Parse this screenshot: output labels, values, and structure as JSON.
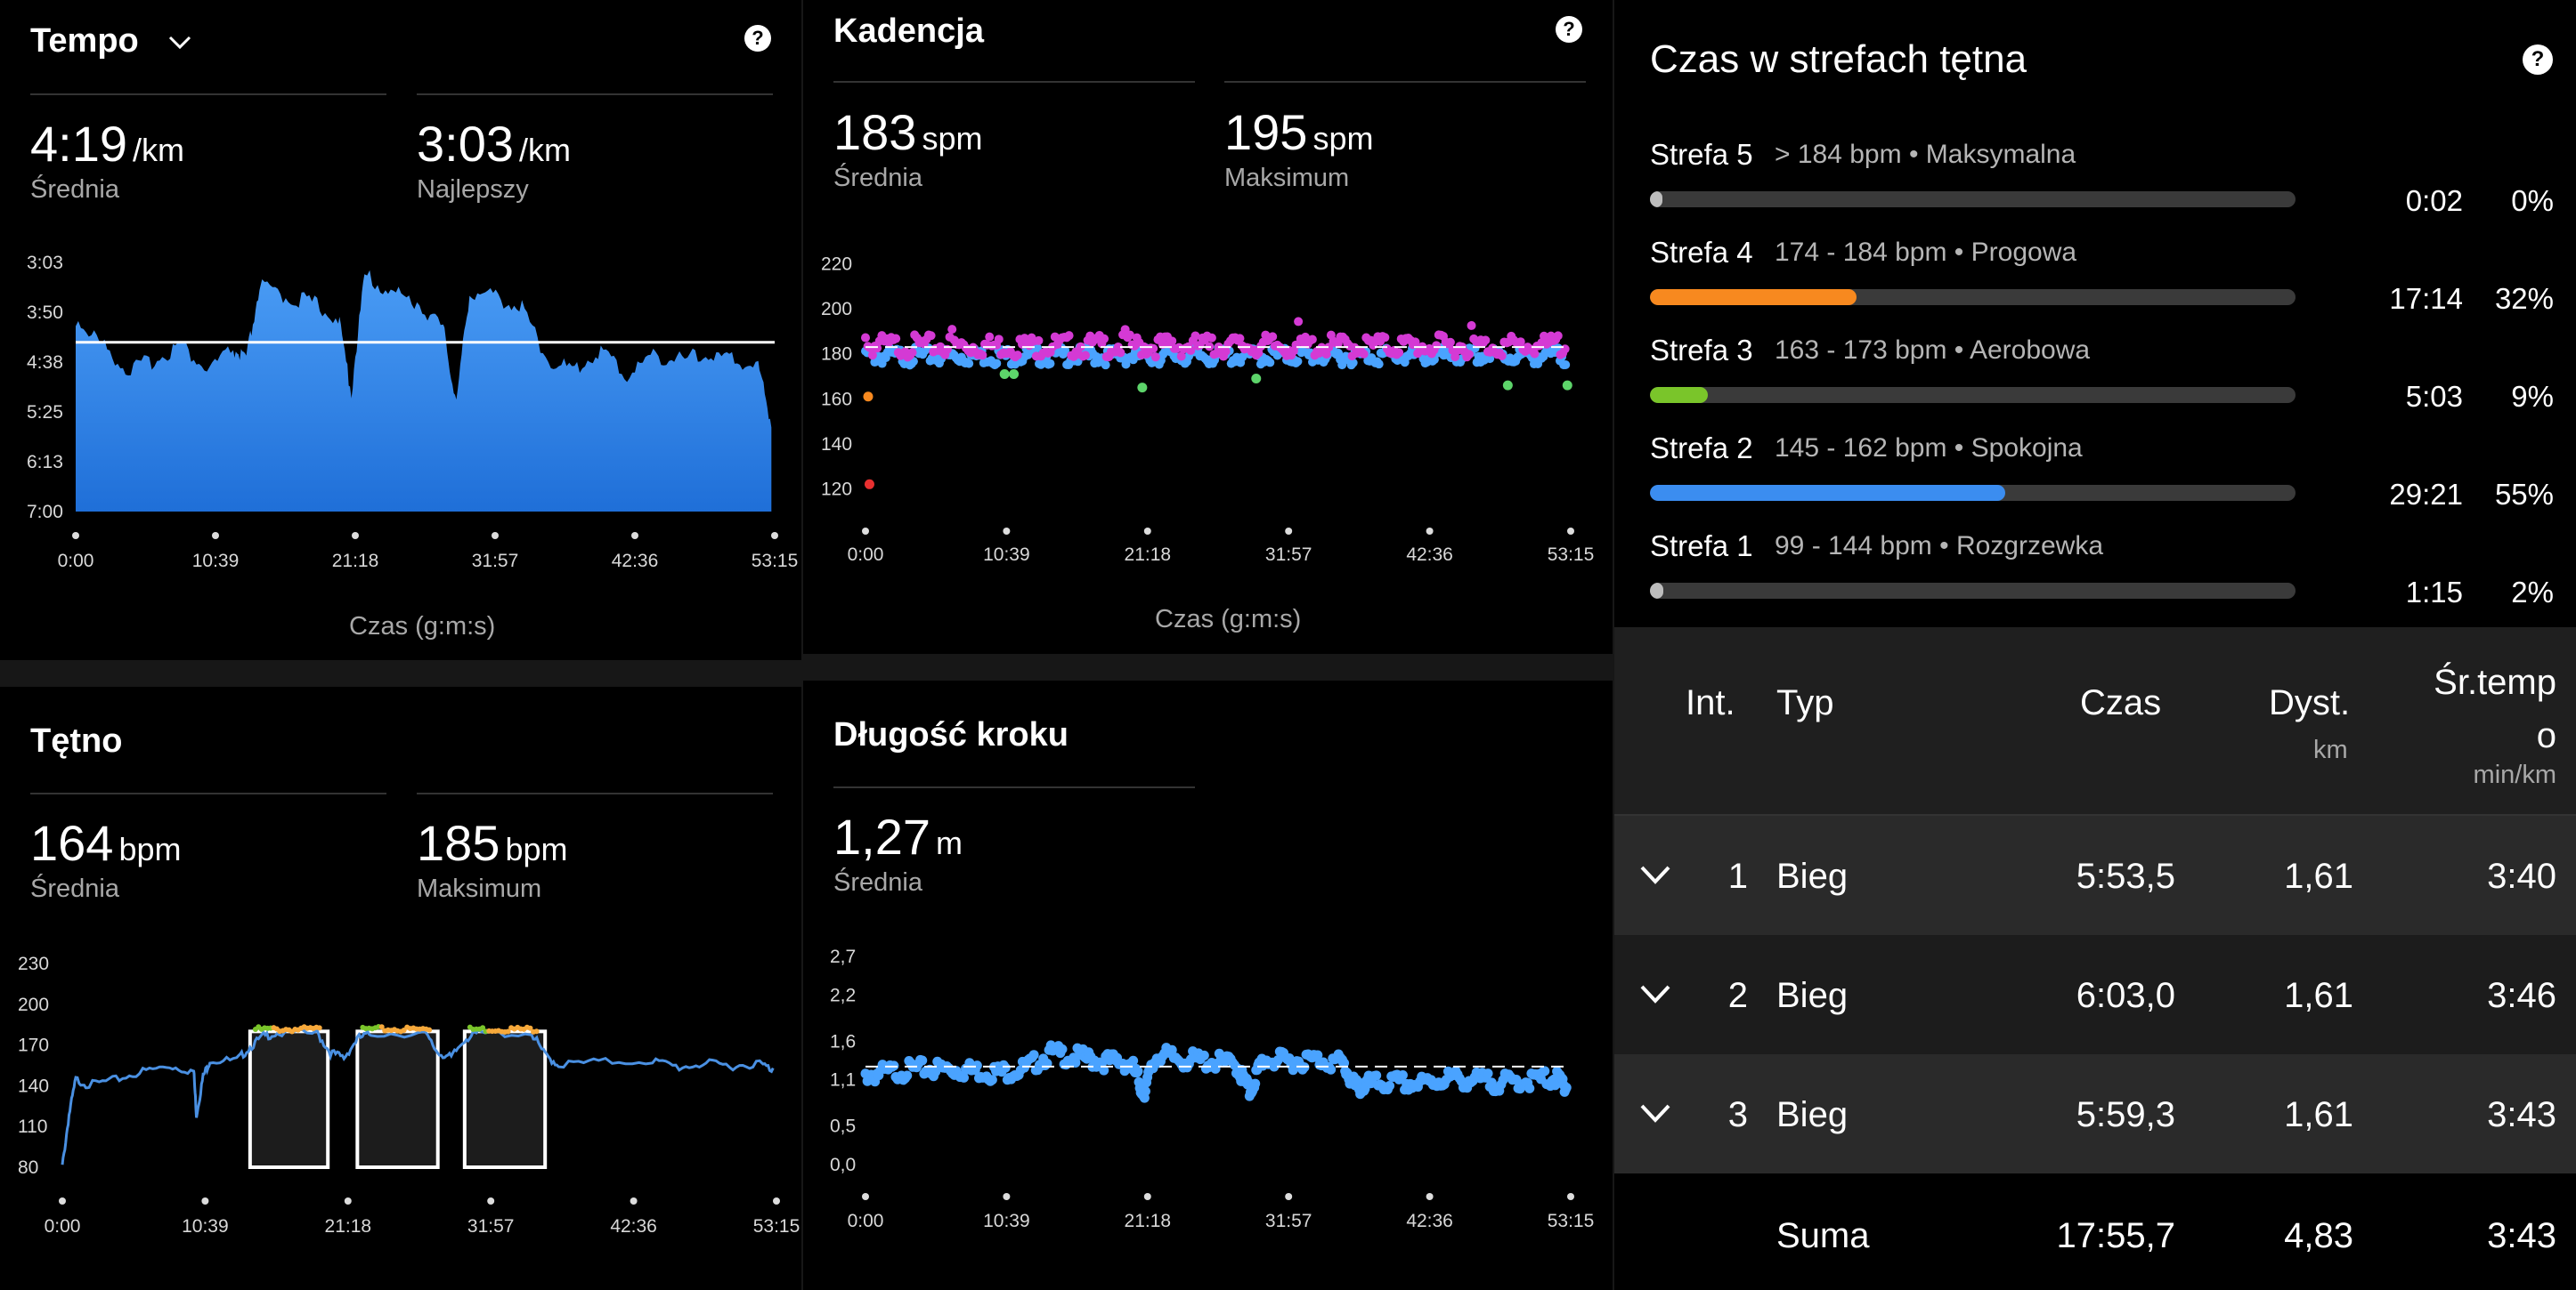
{
  "pace": {
    "title": "Tempo",
    "avg_value": "4:19",
    "avg_unit": "/km",
    "avg_label": "Średnia",
    "best_value": "3:03",
    "best_unit": "/km",
    "best_label": "Najlepszy",
    "xlabel": "Czas (g:m:s)"
  },
  "cadence": {
    "title": "Kadencja",
    "avg_value": "183",
    "avg_unit": "spm",
    "avg_label": "Średnia",
    "max_value": "195",
    "max_unit": "spm",
    "max_label": "Maksimum",
    "xlabel": "Czas (g:m:s)"
  },
  "heart_rate": {
    "title": "Tętno",
    "avg_value": "164",
    "avg_unit": "bpm",
    "avg_label": "Średnia",
    "max_value": "185",
    "max_unit": "bpm",
    "max_label": "Maksimum"
  },
  "stride": {
    "title": "Długość kroku",
    "avg_value": "1,27",
    "avg_unit": "m",
    "avg_label": "Średnia"
  },
  "zones": {
    "title": "Czas w strefach tętna",
    "items": [
      {
        "name": "Strefa 5",
        "desc": "> 184 bpm • Maksymalna",
        "time": "0:02",
        "pct": "0%",
        "fraction": 0.0,
        "color": "#bdbdbd"
      },
      {
        "name": "Strefa 4",
        "desc": "174 - 184 bpm • Progowa",
        "time": "17:14",
        "pct": "32%",
        "fraction": 0.32,
        "color": "#f7891f"
      },
      {
        "name": "Strefa 3",
        "desc": "163 - 173 bpm • Aerobowa",
        "time": "5:03",
        "pct": "9%",
        "fraction": 0.09,
        "color": "#7ac52a"
      },
      {
        "name": "Strefa 2",
        "desc": "145 - 162 bpm • Spokojna",
        "time": "29:21",
        "pct": "55%",
        "fraction": 0.55,
        "color": "#3b8df0"
      },
      {
        "name": "Strefa 1",
        "desc": "99 - 144 bpm • Rozgrzewka",
        "time": "1:15",
        "pct": "2%",
        "fraction": 0.02,
        "color": "#bdbdbd"
      }
    ]
  },
  "laps": {
    "headers": {
      "int": "Int.",
      "type": "Typ",
      "time": "Czas",
      "dist": "Dyst.",
      "dist_unit": "km",
      "pace_line1": "Śr.temp",
      "pace_line2": "o",
      "pace_unit": "min/km"
    },
    "rows": [
      {
        "num": "1",
        "type": "Bieg",
        "time": "5:53,5",
        "dist": "1,61",
        "pace": "3:40"
      },
      {
        "num": "2",
        "type": "Bieg",
        "time": "6:03,0",
        "dist": "1,61",
        "pace": "3:46"
      },
      {
        "num": "3",
        "type": "Bieg",
        "time": "5:59,3",
        "dist": "1,61",
        "pace": "3:43"
      }
    ],
    "total": {
      "label": "Suma",
      "time": "17:55,7",
      "dist": "4,83",
      "pace": "3:43"
    }
  },
  "chart_data": [
    {
      "type": "area",
      "title": "Tempo",
      "xlabel": "Czas (g:m:s)",
      "ylabel": "",
      "x_ticks": [
        "0:00",
        "10:39",
        "21:18",
        "31:57",
        "42:36",
        "53:15"
      ],
      "y_ticks": [
        "3:03",
        "3:50",
        "4:38",
        "5:25",
        "6:13",
        "7:00"
      ],
      "x_minutes": [
        0,
        2,
        4,
        6,
        8,
        10,
        12,
        13,
        14,
        16,
        18,
        20,
        21,
        22,
        24,
        26,
        28,
        29,
        30,
        32,
        34,
        36,
        38,
        40,
        42,
        44,
        46,
        48,
        50,
        52,
        53
      ],
      "values": [
        "4:00",
        "4:25",
        "4:50",
        "4:40",
        "4:25",
        "4:50",
        "4:30",
        "4:40",
        "3:30",
        "3:40",
        "3:45",
        "4:00",
        "5:10",
        "3:20",
        "3:35",
        "3:45",
        "4:10",
        "5:20",
        "3:35",
        "3:40",
        "3:50",
        "4:40",
        "4:50",
        "4:30",
        "4:55",
        "4:35",
        "4:40",
        "4:35",
        "4:40",
        "4:45",
        "5:40"
      ],
      "avg_line": "4:19",
      "color": "#3b8df0"
    },
    {
      "type": "scatter",
      "title": "Kadencja",
      "xlabel": "Czas (g:m:s)",
      "x_ticks": [
        "0:00",
        "10:39",
        "21:18",
        "31:57",
        "42:36",
        "53:15"
      ],
      "y_ticks": [
        220,
        200,
        180,
        160,
        140,
        120
      ],
      "ylim": [
        115,
        225
      ],
      "avg_line": 183,
      "outliers": [
        {
          "x": 0.2,
          "y": 161,
          "color": "#f7891f"
        },
        {
          "x": 0.3,
          "y": 122,
          "color": "#e83030"
        },
        {
          "x": 10.5,
          "y": 171
        },
        {
          "x": 11.2,
          "y": 171
        },
        {
          "x": 20.9,
          "y": 165
        },
        {
          "x": 29.5,
          "y": 169
        },
        {
          "x": 48.5,
          "y": 166
        },
        {
          "x": 53.0,
          "y": 166
        }
      ],
      "colors": {
        "high": "#d43ad4",
        "mid": "#4aa3ff",
        "low": "#5dd46a"
      }
    },
    {
      "type": "line",
      "title": "Tętno",
      "x_ticks": [
        "0:00",
        "10:39",
        "21:18",
        "31:57",
        "42:36",
        "53:15"
      ],
      "y_ticks": [
        230,
        200,
        170,
        140,
        110,
        80
      ],
      "ylim": [
        80,
        230
      ],
      "x_minutes": [
        0,
        0.5,
        1,
        2,
        4,
        6,
        8,
        9.8,
        10,
        10.5,
        11,
        13,
        14,
        15,
        16,
        19,
        20,
        21,
        22,
        23,
        27,
        28,
        29,
        30,
        31,
        35,
        36,
        37,
        40,
        44,
        46,
        48,
        50,
        52,
        53
      ],
      "values": [
        82,
        120,
        146,
        142,
        146,
        152,
        156,
        152,
        120,
        148,
        160,
        160,
        170,
        178,
        180,
        180,
        166,
        162,
        176,
        180,
        180,
        166,
        162,
        176,
        180,
        180,
        164,
        157,
        159,
        160,
        155,
        158,
        156,
        158,
        153
      ],
      "interval_boxes": [
        [
          14,
          19.8
        ],
        [
          22,
          28
        ],
        [
          30,
          36
        ]
      ],
      "color": "#4a90e2"
    },
    {
      "type": "scatter",
      "title": "Długość kroku",
      "x_ticks": [
        "0:00",
        "10:39",
        "21:18",
        "31:57",
        "42:36",
        "53:15"
      ],
      "y_ticks": [
        "2,7",
        "2,2",
        "1,6",
        "1,1",
        "0,5",
        "0,0"
      ],
      "ylim": [
        0,
        2.7
      ],
      "avg_line": 1.27,
      "x_minutes": [
        0,
        2,
        4,
        6,
        8,
        10,
        12,
        14,
        16,
        18,
        20,
        21,
        22,
        24,
        26,
        28,
        29,
        30,
        32,
        34,
        36,
        37,
        38,
        40,
        42,
        44,
        46,
        48,
        50,
        52,
        53
      ],
      "values": [
        1.22,
        1.26,
        1.3,
        1.3,
        1.28,
        1.25,
        1.3,
        1.5,
        1.45,
        1.4,
        1.38,
        1.0,
        1.48,
        1.42,
        1.4,
        1.35,
        1.0,
        1.42,
        1.4,
        1.42,
        1.38,
        1.05,
        1.1,
        1.12,
        1.1,
        1.18,
        1.15,
        1.12,
        1.15,
        1.18,
        1.1
      ],
      "color": "#4aa3ff"
    }
  ]
}
